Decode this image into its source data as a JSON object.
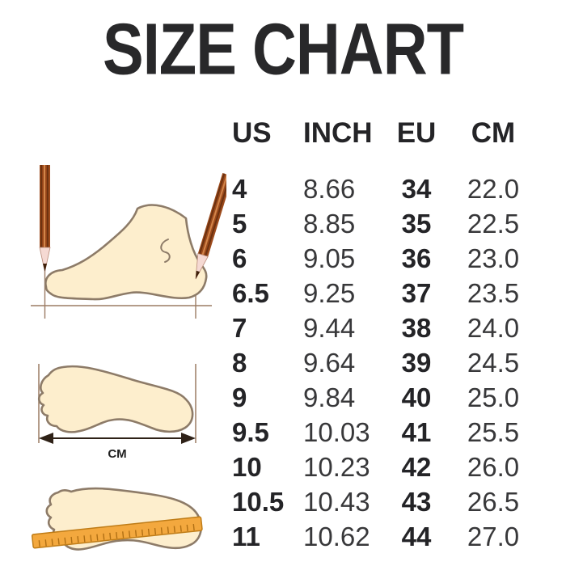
{
  "title": "SIZE CHART",
  "chart_data": {
    "type": "table",
    "title": "SIZE CHART",
    "columns": [
      "US",
      "INCH",
      "EU",
      "CM"
    ],
    "rows": [
      [
        "4",
        "8.66",
        "34",
        "22.0"
      ],
      [
        "5",
        "8.85",
        "35",
        "22.5"
      ],
      [
        "6",
        "9.05",
        "36",
        "23.0"
      ],
      [
        "6.5",
        "9.25",
        "37",
        "23.5"
      ],
      [
        "7",
        "9.44",
        "38",
        "24.0"
      ],
      [
        "8",
        "9.64",
        "39",
        "24.5"
      ],
      [
        "9",
        "9.84",
        "40",
        "25.0"
      ],
      [
        "9.5",
        "10.03",
        "41",
        "25.5"
      ],
      [
        "10",
        "10.23",
        "42",
        "26.0"
      ],
      [
        "10.5",
        "10.43",
        "43",
        "26.5"
      ],
      [
        "11",
        "10.62",
        "44",
        "27.0"
      ]
    ]
  },
  "illustrations": {
    "length_arrow_label": "CM",
    "icons": [
      "foot-side-with-pencils-icon",
      "footprint-length-arrow-icon",
      "footprint-ruler-icon"
    ]
  },
  "colors": {
    "title_text": "#28282a",
    "table_bold_text": "#242427",
    "table_regular_text": "#38383a",
    "foot_fill": "#fdeecd",
    "foot_outline": "#8d7b68",
    "pencil_brown": "#9c4a1c",
    "ruler_orange": "#f3a83e",
    "measure_line": "#9b7b63",
    "background": "#ffffff"
  }
}
